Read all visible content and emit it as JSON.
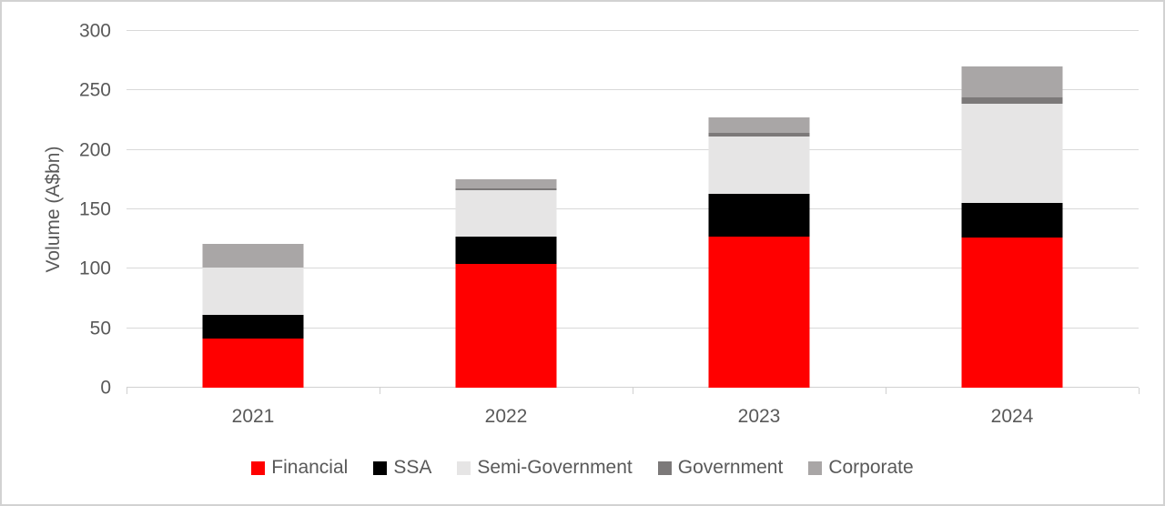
{
  "chart_data": {
    "type": "bar",
    "stacked": true,
    "title": "",
    "xlabel": "",
    "ylabel": "Volume (A$bn)",
    "categories": [
      "2021",
      "2022",
      "2023",
      "2024"
    ],
    "series": [
      {
        "name": "Financial",
        "color": "#FF0000",
        "values": [
          41,
          104,
          127,
          126
        ]
      },
      {
        "name": "SSA",
        "color": "#000000",
        "values": [
          20,
          23,
          36,
          29
        ]
      },
      {
        "name": "Semi-Government",
        "color": "#E6E5E5",
        "values": [
          40,
          39,
          48,
          84
        ]
      },
      {
        "name": "Government",
        "color": "#7C7979",
        "values": [
          0,
          2,
          3,
          5
        ]
      },
      {
        "name": "Corporate",
        "color": "#A9A6A6",
        "values": [
          20,
          7,
          13,
          26
        ]
      }
    ],
    "totals": [
      121,
      175,
      227,
      270
    ],
    "ylim": [
      0,
      300
    ],
    "y_ticks": [
      0,
      50,
      100,
      150,
      200,
      250,
      300
    ],
    "grid": true,
    "gridline_color": "#D9D9D9",
    "axis_line_color": "#D0D0D0",
    "text_color": "#595959",
    "legend_position": "bottom"
  }
}
